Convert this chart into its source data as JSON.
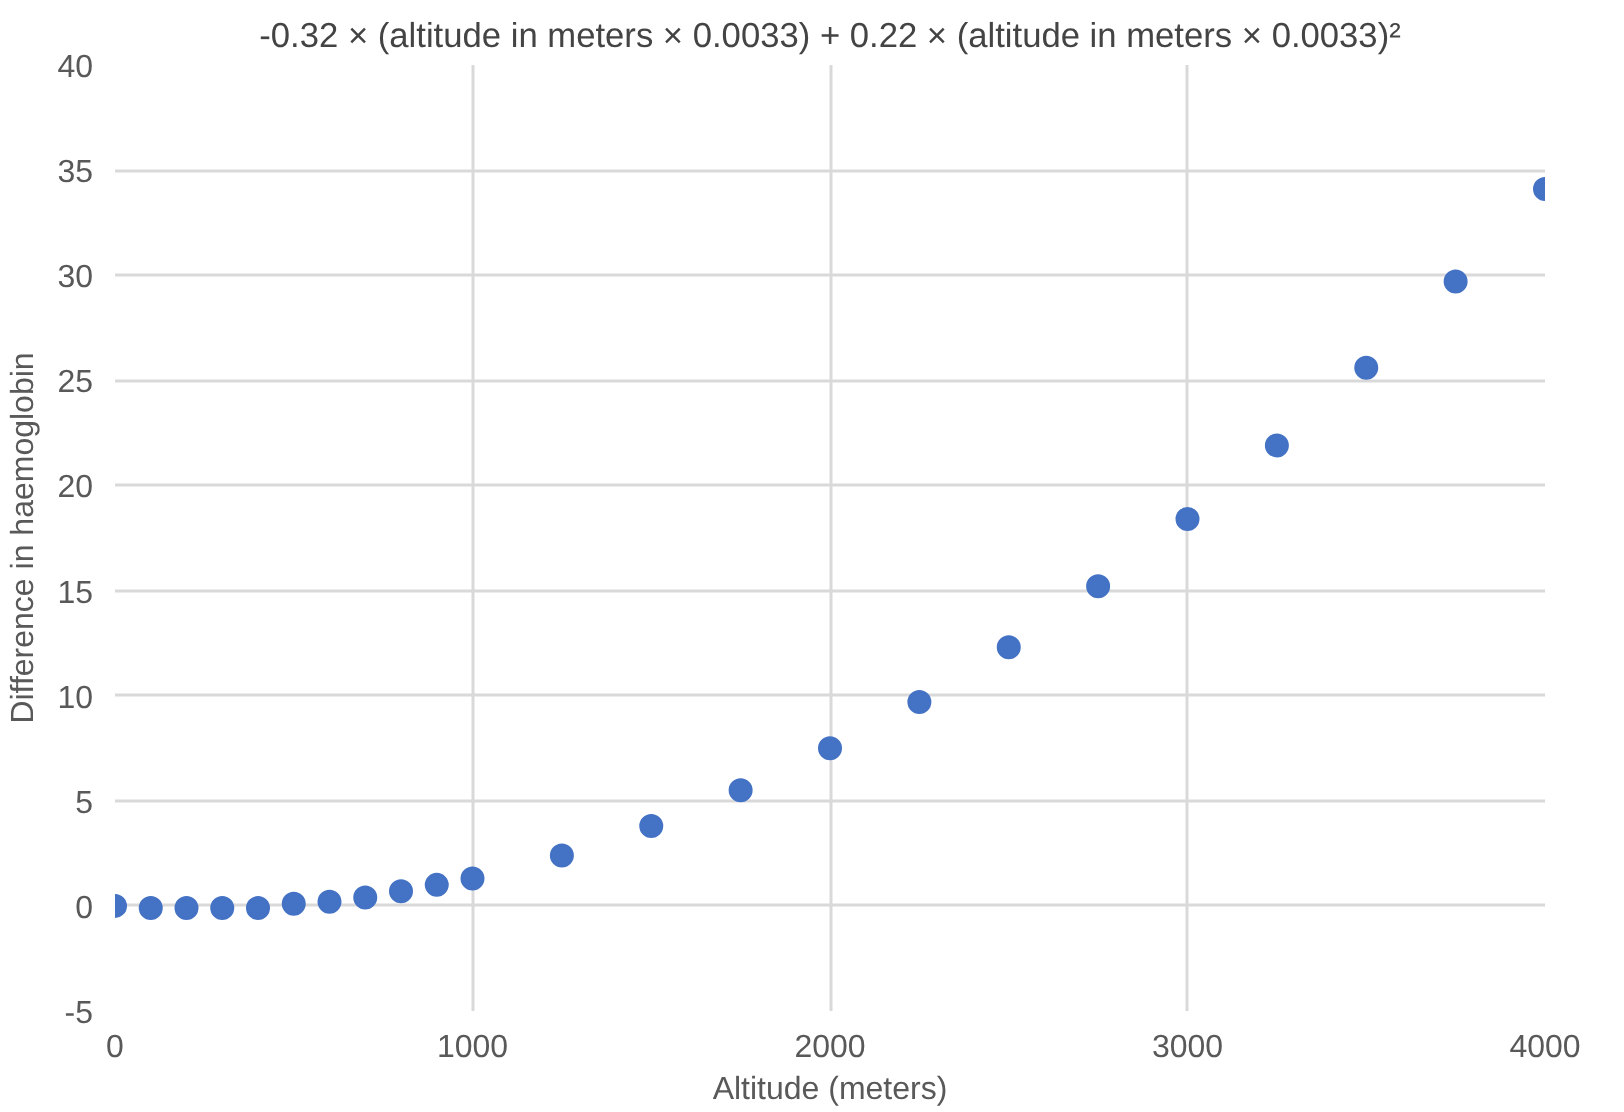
{
  "chart_data": {
    "type": "scatter",
    "title": "-0.32 × (altitude in meters × 0.0033) + 0.22 × (altitude in meters × 0.0033)²",
    "xlabel": "Altitude (meters)",
    "ylabel": "Difference in haemoglobin",
    "x": [
      0,
      100,
      200,
      300,
      400,
      500,
      600,
      700,
      800,
      900,
      1000,
      1250,
      1500,
      1750,
      2000,
      2250,
      2500,
      2750,
      3000,
      3250,
      3500,
      3750,
      4000
    ],
    "series": [
      {
        "color": "#4472c4",
        "values": [
          0,
          -0.1,
          -0.1,
          -0.1,
          -0.1,
          0.1,
          0.2,
          0.4,
          0.7,
          1.0,
          1.3,
          2.4,
          3.8,
          5.5,
          7.5,
          9.7,
          12.3,
          15.2,
          18.4,
          21.9,
          25.6,
          29.7,
          34.1
        ]
      }
    ],
    "xlim": [
      0,
      4000
    ],
    "ylim": [
      -5,
      40
    ],
    "xticks": [
      0,
      1000,
      2000,
      3000,
      4000
    ],
    "yticks": [
      -5,
      0,
      5,
      10,
      15,
      20,
      25,
      30,
      35,
      40
    ],
    "grid": true,
    "marker": "circle"
  }
}
